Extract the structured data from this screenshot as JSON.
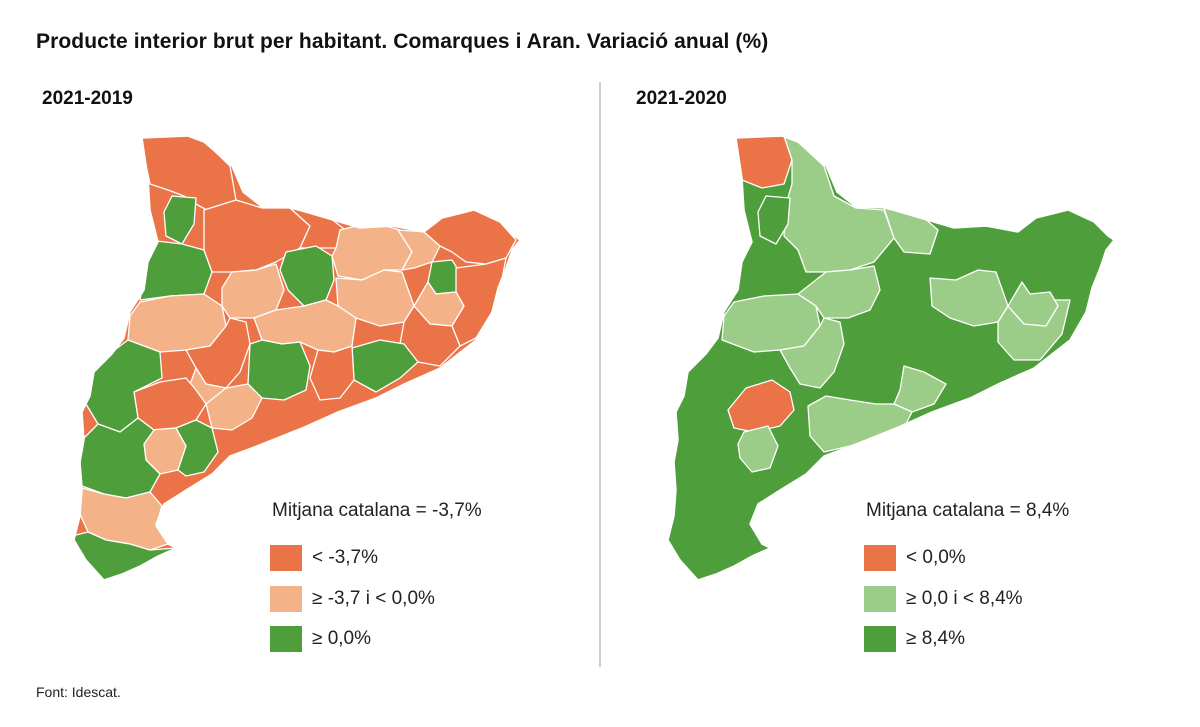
{
  "title": "Producte interior brut per habitant. Comarques i Aran. Variació anual (%)",
  "source": "Font: Idescat.",
  "colors": {
    "orange": "#ea7447",
    "light_orange": "#f4b288",
    "green": "#4f9e3c",
    "light_green": "#9ccd88"
  },
  "panels": [
    {
      "title": "2021-2019",
      "average_label": "Mitjana catalana = -3,7%",
      "legend": [
        {
          "label": "< -3,7%",
          "color": "#ea7447"
        },
        {
          "label": "≥ -3,7 i < 0,0%",
          "color": "#f4b288"
        },
        {
          "label": "≥ 0,0%",
          "color": "#4f9e3c"
        }
      ]
    },
    {
      "title": "2021-2020",
      "average_label": "Mitjana catalana = 8,4%",
      "legend": [
        {
          "label": "< 0,0%",
          "color": "#ea7447"
        },
        {
          "label": "≥ 0,0 i < 8,4%",
          "color": "#9ccd88"
        },
        {
          "label": "≥ 8,4%",
          "color": "#4f9e3c"
        }
      ]
    }
  ]
}
